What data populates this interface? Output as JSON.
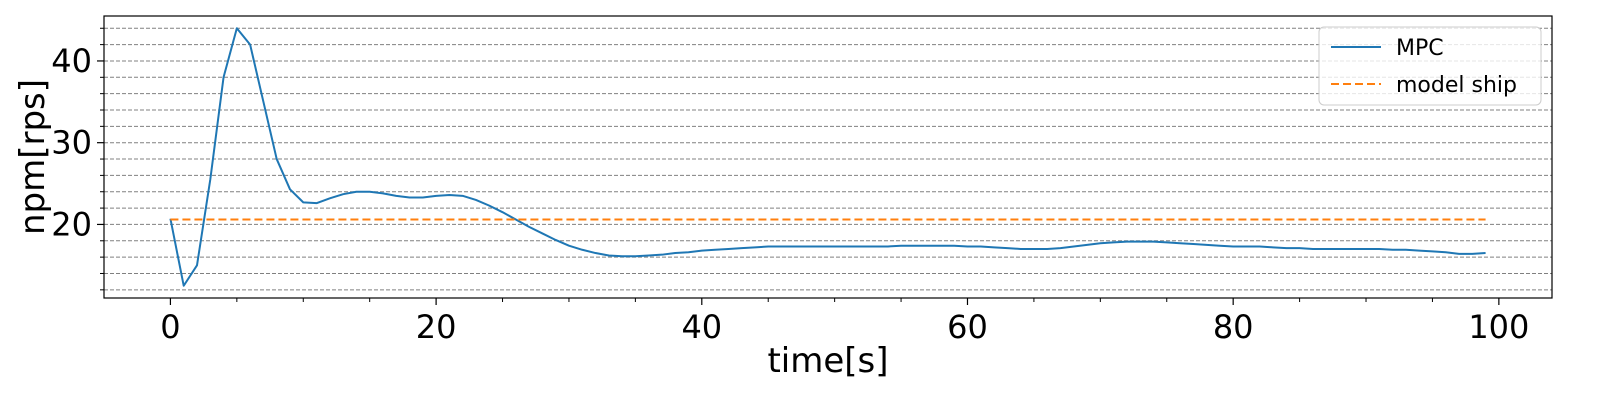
{
  "chart_data": {
    "type": "line",
    "title": "",
    "xlabel": "time[s]",
    "ylabel": "npm[rps]",
    "xlim": [
      -5,
      104
    ],
    "ylim": [
      11,
      45.5
    ],
    "x_major_ticks": [
      0,
      20,
      40,
      60,
      80,
      100
    ],
    "x_minor_ticks": [
      5,
      10,
      15,
      25,
      30,
      35,
      45,
      50,
      55,
      65,
      70,
      75,
      85,
      90,
      95
    ],
    "y_major_ticks": [
      20,
      30,
      40
    ],
    "y_minor_ticks": [
      12,
      14,
      16,
      18,
      22,
      24,
      26,
      28,
      32,
      34,
      36,
      38,
      42,
      44
    ],
    "y_grid": [
      12,
      14,
      16,
      18,
      20,
      22,
      24,
      26,
      28,
      30,
      32,
      34,
      36,
      38,
      40,
      42,
      44
    ],
    "grid": "horizontal dashed at minor and major y ticks",
    "legend_position": "top-right",
    "series": [
      {
        "name": "MPC",
        "color": "#1f77b4",
        "style": "solid",
        "x": [
          0,
          1,
          2,
          3,
          4,
          5,
          6,
          7,
          8,
          9,
          10,
          11,
          12,
          13,
          14,
          15,
          16,
          17,
          18,
          19,
          20,
          21,
          22,
          23,
          24,
          25,
          26,
          27,
          28,
          29,
          30,
          31,
          32,
          33,
          34,
          35,
          36,
          37,
          38,
          39,
          40,
          41,
          42,
          43,
          44,
          45,
          46,
          47,
          48,
          49,
          50,
          51,
          52,
          53,
          54,
          55,
          56,
          57,
          58,
          59,
          60,
          61,
          62,
          63,
          64,
          65,
          66,
          67,
          68,
          69,
          70,
          71,
          72,
          73,
          74,
          75,
          76,
          77,
          78,
          79,
          80,
          81,
          82,
          83,
          84,
          85,
          86,
          87,
          88,
          89,
          90,
          91,
          92,
          93,
          94,
          95,
          96,
          97,
          98,
          99
        ],
        "values": [
          20.7,
          12.5,
          15.0,
          25.5,
          38.0,
          44.0,
          42.0,
          35.0,
          28.0,
          24.3,
          22.7,
          22.6,
          23.2,
          23.7,
          24.0,
          24.0,
          23.8,
          23.5,
          23.3,
          23.3,
          23.5,
          23.6,
          23.5,
          23.0,
          22.3,
          21.5,
          20.6,
          19.7,
          18.9,
          18.1,
          17.4,
          16.9,
          16.5,
          16.2,
          16.1,
          16.1,
          16.2,
          16.3,
          16.5,
          16.6,
          16.8,
          16.9,
          17.0,
          17.1,
          17.2,
          17.3,
          17.3,
          17.3,
          17.3,
          17.3,
          17.3,
          17.3,
          17.3,
          17.3,
          17.3,
          17.4,
          17.4,
          17.4,
          17.4,
          17.4,
          17.3,
          17.3,
          17.2,
          17.1,
          17.0,
          17.0,
          17.0,
          17.1,
          17.3,
          17.5,
          17.7,
          17.8,
          17.9,
          17.9,
          17.9,
          17.8,
          17.7,
          17.6,
          17.5,
          17.4,
          17.3,
          17.3,
          17.3,
          17.2,
          17.1,
          17.1,
          17.0,
          17.0,
          17.0,
          17.0,
          17.0,
          17.0,
          16.9,
          16.9,
          16.8,
          16.7,
          16.6,
          16.4,
          16.4,
          16.5
        ]
      },
      {
        "name": "model ship",
        "color": "#ff7f0e",
        "style": "dashed",
        "x": [
          0,
          99
        ],
        "values": [
          20.6,
          20.6
        ]
      }
    ]
  }
}
